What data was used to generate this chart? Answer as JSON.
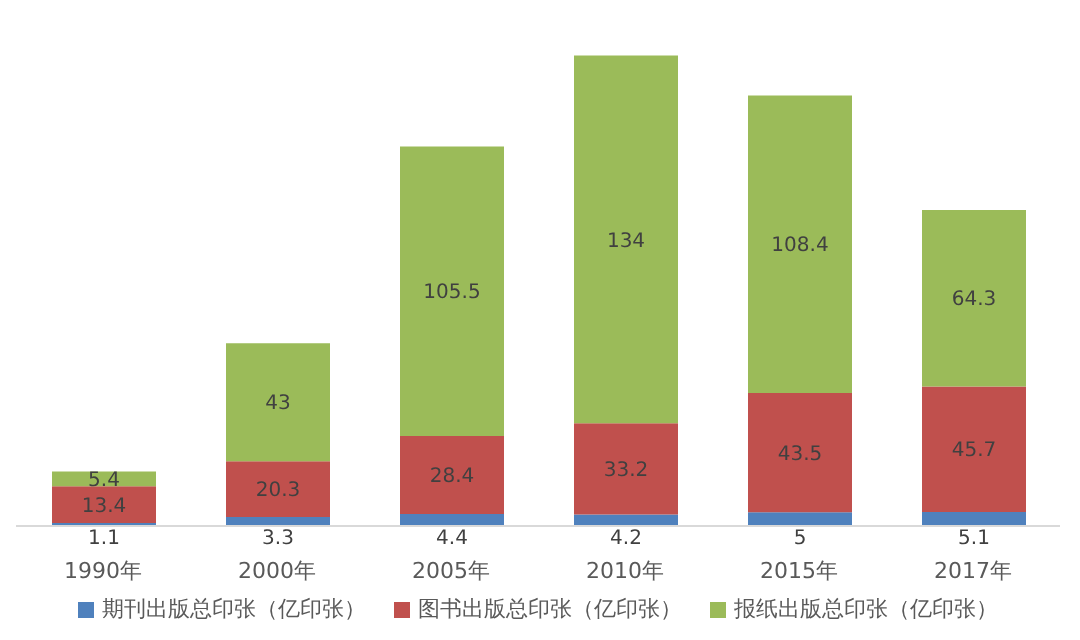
{
  "chart_data": {
    "type": "bar",
    "stacked": true,
    "categories": [
      "1990年",
      "2000年",
      "2005年",
      "2010年",
      "2015年",
      "2017年"
    ],
    "series": [
      {
        "name": "期刊出版总印张（亿印张）",
        "color": "#4f81bd",
        "values": [
          1.1,
          3.3,
          4.4,
          4.2,
          5,
          5.1
        ]
      },
      {
        "name": "图书出版总印张（亿印张）",
        "color": "#c0504d",
        "values": [
          13.4,
          20.3,
          28.4,
          33.2,
          43.5,
          45.7
        ]
      },
      {
        "name": "报纸出版总印张（亿印张）",
        "color": "#9bbb59",
        "values": [
          5.4,
          43,
          105.5,
          134,
          108.4,
          64.3
        ]
      }
    ],
    "legend": "bottom",
    "data_labels": true
  }
}
